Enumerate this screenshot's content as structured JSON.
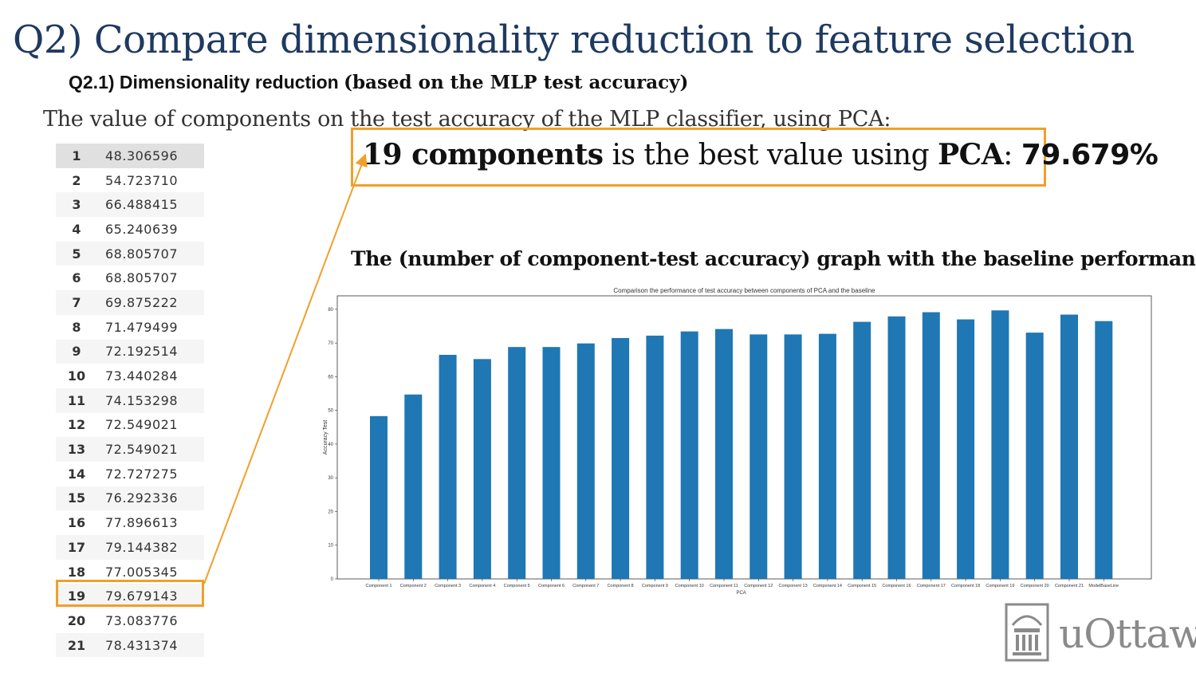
{
  "slide": {
    "title": "Q2) Compare dimensionality reduction to feature selection",
    "subtitle_sans": "Q2.1) Dimensionality reduction ",
    "subtitle_serif": "(based on the MLP test accuracy)",
    "intro": "The value of components on the test accuracy of the MLP classifier, using PCA:",
    "best_bold_1": "19 components",
    "best_mid": " is the best value using ",
    "best_bold_2": "PCA",
    "best_sep": ": ",
    "best_bold_3": "79.679%",
    "graph_heading": "The (number of component-test accuracy) graph with the baseline performance:",
    "logo_text": "uOttawa"
  },
  "table": {
    "rows": [
      {
        "index": "1",
        "value": "48.306596"
      },
      {
        "index": "2",
        "value": "54.723710"
      },
      {
        "index": "3",
        "value": "66.488415"
      },
      {
        "index": "4",
        "value": "65.240639"
      },
      {
        "index": "5",
        "value": "68.805707"
      },
      {
        "index": "6",
        "value": "68.805707"
      },
      {
        "index": "7",
        "value": "69.875222"
      },
      {
        "index": "8",
        "value": "71.479499"
      },
      {
        "index": "9",
        "value": "72.192514"
      },
      {
        "index": "10",
        "value": "73.440284"
      },
      {
        "index": "11",
        "value": "74.153298"
      },
      {
        "index": "12",
        "value": "72.549021"
      },
      {
        "index": "13",
        "value": "72.549021"
      },
      {
        "index": "14",
        "value": "72.727275"
      },
      {
        "index": "15",
        "value": "76.292336"
      },
      {
        "index": "16",
        "value": "77.896613"
      },
      {
        "index": "17",
        "value": "79.144382"
      },
      {
        "index": "18",
        "value": "77.005345"
      },
      {
        "index": "19",
        "value": "79.679143"
      },
      {
        "index": "20",
        "value": "73.083776"
      },
      {
        "index": "21",
        "value": "78.431374"
      }
    ]
  },
  "colors": {
    "accent": "#f0a02a",
    "title": "#1f3a5f",
    "bar": "#1f77b4"
  },
  "chart_data": {
    "type": "bar",
    "title": "Comparison the performance of test accuracy between components of PCA and the baseline",
    "xlabel": "PCA",
    "ylabel": "Accuracy Test",
    "ylim": [
      0,
      84
    ],
    "yticks": [
      0,
      10,
      20,
      30,
      40,
      50,
      60,
      70,
      80
    ],
    "grid": false,
    "categories": [
      "Component 1",
      "Component 2",
      "Component 3",
      "Component 4",
      "Component 5",
      "Component 6",
      "Component 7",
      "Component 8",
      "Component 9",
      "Component 10",
      "Component 11",
      "Component 12",
      "Component 13",
      "Component 14",
      "Component 15",
      "Component 16",
      "Component 17",
      "Component 18",
      "Component 19",
      "Component 20",
      "Component 21",
      "ModelBaseLine"
    ],
    "values": [
      48.31,
      54.72,
      66.49,
      65.24,
      68.81,
      68.81,
      69.88,
      71.48,
      72.19,
      73.44,
      74.15,
      72.55,
      72.55,
      72.73,
      76.29,
      77.9,
      79.14,
      77.01,
      79.68,
      73.08,
      78.43,
      76.5
    ]
  }
}
